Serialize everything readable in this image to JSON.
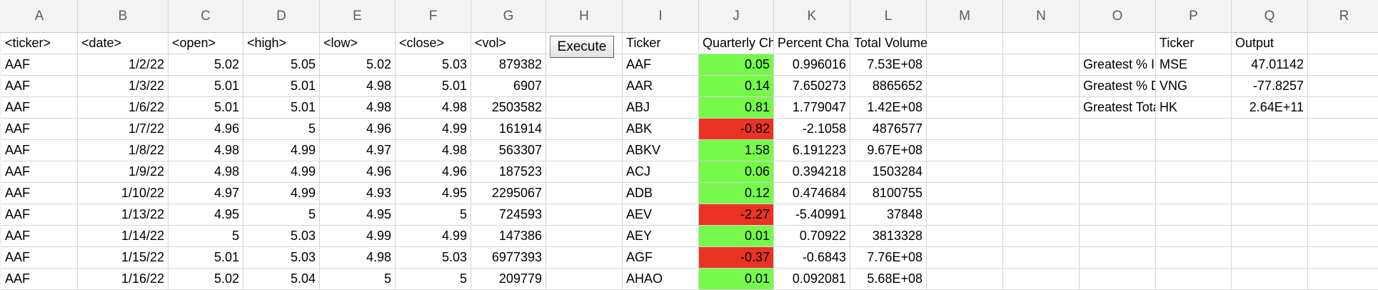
{
  "columns": [
    "A",
    "B",
    "C",
    "D",
    "E",
    "F",
    "G",
    "H",
    "I",
    "J",
    "K",
    "L",
    "M",
    "N",
    "O",
    "P",
    "Q",
    "R"
  ],
  "header_row": [
    "<ticker>",
    "<date>",
    "<open>",
    "<high>",
    "<low>",
    "<close>",
    "<vol>",
    "",
    "Ticker",
    "Quarterly Change",
    "Percent Change",
    "Total Volume",
    "",
    "",
    "",
    "Ticker",
    "Output",
    ""
  ],
  "data_rows": [
    [
      "AAF",
      "1/2/22",
      "5.02",
      "5.05",
      "5.02",
      "5.03",
      "879382",
      "",
      "AAF",
      "0.05",
      "0.996016",
      "7.53E+08",
      "",
      "",
      "Greatest % Increase",
      "MSE",
      "47.01142",
      ""
    ],
    [
      "AAF",
      "1/3/22",
      "5.01",
      "5.01",
      "4.98",
      "5.01",
      "6907",
      "",
      "AAR",
      "0.14",
      "7.650273",
      "8865652",
      "",
      "",
      "Greatest % Decrease",
      "VNG",
      "-77.8257",
      ""
    ],
    [
      "AAF",
      "1/6/22",
      "5.01",
      "5.01",
      "4.98",
      "4.98",
      "2503582",
      "",
      "ABJ",
      "0.81",
      "1.779047",
      "1.42E+08",
      "",
      "",
      "Greatest Total Volume",
      "HK",
      "2.64E+11",
      ""
    ],
    [
      "AAF",
      "1/7/22",
      "4.96",
      "5",
      "4.96",
      "4.99",
      "161914",
      "",
      "ABK",
      "-0.82",
      "-2.1058",
      "4876577",
      "",
      "",
      "",
      "",
      "",
      ""
    ],
    [
      "AAF",
      "1/8/22",
      "4.98",
      "4.99",
      "4.97",
      "4.98",
      "563307",
      "",
      "ABKV",
      "1.58",
      "6.191223",
      "9.67E+08",
      "",
      "",
      "",
      "",
      "",
      ""
    ],
    [
      "AAF",
      "1/9/22",
      "4.98",
      "4.99",
      "4.96",
      "4.96",
      "187523",
      "",
      "ACJ",
      "0.06",
      "0.394218",
      "1503284",
      "",
      "",
      "",
      "",
      "",
      ""
    ],
    [
      "AAF",
      "1/10/22",
      "4.97",
      "4.99",
      "4.93",
      "4.95",
      "2295067",
      "",
      "ADB",
      "0.12",
      "0.474684",
      "8100755",
      "",
      "",
      "",
      "",
      "",
      ""
    ],
    [
      "AAF",
      "1/13/22",
      "4.95",
      "5",
      "4.95",
      "5",
      "724593",
      "",
      "AEV",
      "-2.27",
      "-5.40991",
      "37848",
      "",
      "",
      "",
      "",
      "",
      ""
    ],
    [
      "AAF",
      "1/14/22",
      "5",
      "5.03",
      "4.99",
      "4.99",
      "147386",
      "",
      "AEY",
      "0.01",
      "0.70922",
      "3813328",
      "",
      "",
      "",
      "",
      "",
      ""
    ],
    [
      "AAF",
      "1/15/22",
      "5.01",
      "5.03",
      "4.98",
      "5.03",
      "6977393",
      "",
      "AGF",
      "-0.37",
      "-0.6843",
      "7.76E+08",
      "",
      "",
      "",
      "",
      "",
      ""
    ],
    [
      "AAF",
      "1/16/22",
      "5.02",
      "5.04",
      "5",
      "5",
      "209779",
      "",
      "AHAO",
      "0.01",
      "0.092081",
      "5.68E+08",
      "",
      "",
      "",
      "",
      "",
      ""
    ]
  ],
  "execute_button": {
    "label": "Execute"
  },
  "conditional_colors": {
    "positive": "#76f94a",
    "negative": "#ea3323"
  }
}
